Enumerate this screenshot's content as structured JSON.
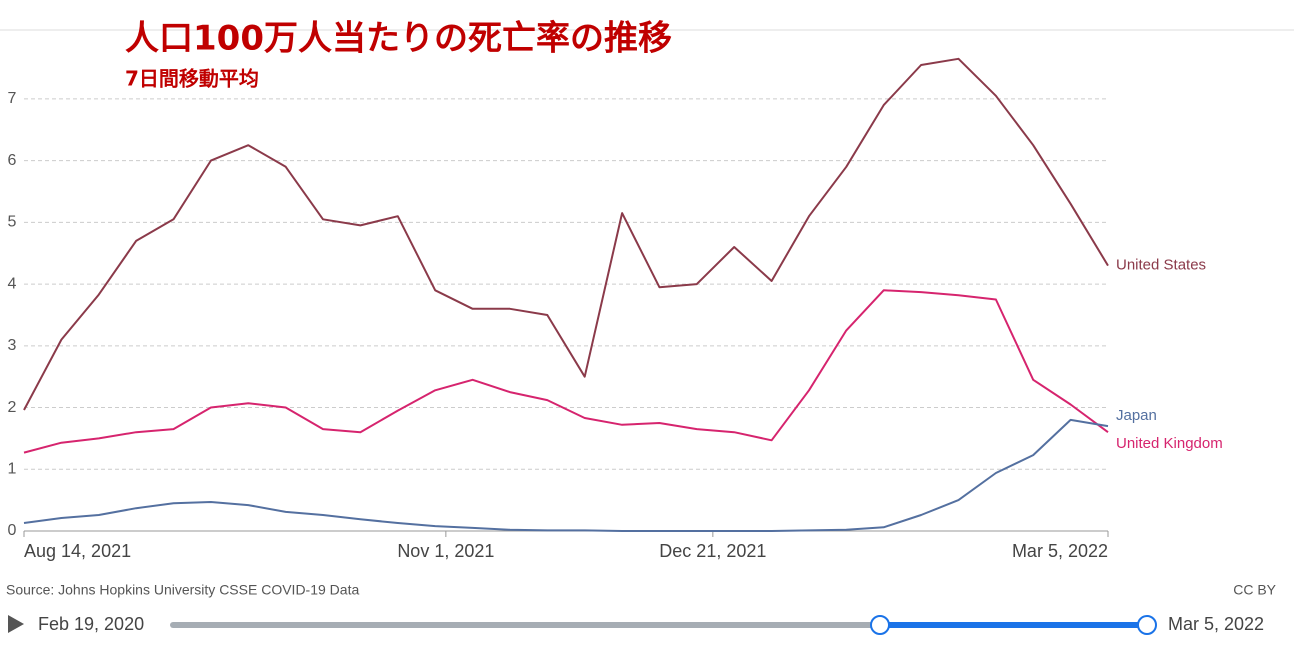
{
  "chart_data": {
    "type": "line",
    "title": "人口100万人当たりの死亡率の推移",
    "subtitle": "7日間移動平均",
    "source": "Source: Johns Hopkins University CSSE COVID-19 Data",
    "license": "CC BY",
    "x": [
      "2021-08-14",
      "2021-08-21",
      "2021-08-28",
      "2021-09-04",
      "2021-09-11",
      "2021-09-18",
      "2021-09-25",
      "2021-10-02",
      "2021-10-09",
      "2021-10-16",
      "2021-10-23",
      "2021-10-30",
      "2021-11-06",
      "2021-11-13",
      "2021-11-20",
      "2021-11-27",
      "2021-12-04",
      "2021-12-11",
      "2021-12-18",
      "2021-12-25",
      "2022-01-01",
      "2022-01-08",
      "2022-01-15",
      "2022-01-22",
      "2022-01-29",
      "2022-02-05",
      "2022-02-12",
      "2022-02-19",
      "2022-02-26",
      "2022-03-05"
    ],
    "series": [
      {
        "name": "United States",
        "color": "#8b3a4a",
        "values": [
          1.96,
          3.1,
          3.83,
          4.7,
          5.05,
          6.0,
          6.25,
          5.9,
          5.05,
          4.95,
          5.1,
          3.9,
          3.6,
          3.6,
          3.5,
          2.5,
          5.15,
          3.95,
          4.0,
          4.6,
          4.05,
          5.1,
          5.9,
          6.9,
          7.55,
          7.65,
          7.05,
          6.25,
          5.3,
          4.3
        ]
      },
      {
        "name": "United Kingdom",
        "color": "#d6246e",
        "values": [
          1.27,
          1.43,
          1.5,
          1.6,
          1.65,
          2.0,
          2.07,
          2.0,
          1.65,
          1.6,
          1.95,
          2.28,
          2.45,
          2.25,
          2.12,
          1.83,
          1.72,
          1.75,
          1.65,
          1.6,
          1.47,
          2.28,
          3.25,
          3.9,
          3.87,
          3.82,
          3.75,
          2.45,
          2.05,
          1.6
        ]
      },
      {
        "name": "Japan",
        "color": "#5470a0",
        "values": [
          0.13,
          0.21,
          0.26,
          0.37,
          0.45,
          0.47,
          0.42,
          0.31,
          0.26,
          0.19,
          0.13,
          0.08,
          0.05,
          0.02,
          0.01,
          0.01,
          0.0,
          0.0,
          0.0,
          0.0,
          0.0,
          0.01,
          0.02,
          0.06,
          0.26,
          0.5,
          0.94,
          1.23,
          1.8,
          1.7
        ]
      }
    ],
    "xlim": [
      "2021-08-14",
      "2022-03-05"
    ],
    "xticks": [
      {
        "value": "2021-08-14",
        "label": "Aug 14, 2021"
      },
      {
        "value": "2021-11-01",
        "label": "Nov 1, 2021"
      },
      {
        "value": "2021-12-21",
        "label": "Dec 21, 2021"
      },
      {
        "value": "2022-03-05",
        "label": "Mar 5, 2022"
      }
    ],
    "ylim": [
      0,
      8.1
    ],
    "yticks": [
      0,
      1,
      2,
      3,
      4,
      5,
      6,
      7
    ],
    "grid": true,
    "timeline": {
      "start": "Feb 19, 2020",
      "end": "Mar 5, 2022"
    }
  }
}
